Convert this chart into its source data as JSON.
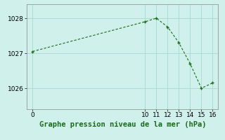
{
  "x": [
    0,
    10,
    11,
    12,
    13,
    14,
    15,
    16
  ],
  "y": [
    1027.05,
    1027.9,
    1028.0,
    1027.75,
    1027.3,
    1026.7,
    1026.0,
    1026.15
  ],
  "line_color": "#1a6b1a",
  "marker_color": "#1a6b1a",
  "bg_color": "#cff0eb",
  "grid_color": "#a8d8d0",
  "title": "Graphe pression niveau de la mer (hPa)",
  "title_color": "#1a6b1a",
  "xlim": [
    -0.5,
    16.5
  ],
  "ylim": [
    1025.4,
    1028.4
  ],
  "xticks": [
    0,
    10,
    11,
    12,
    13,
    14,
    15,
    16
  ],
  "yticks": [
    1026,
    1027,
    1028
  ],
  "tick_fontsize": 6.5,
  "title_fontsize": 7.5
}
